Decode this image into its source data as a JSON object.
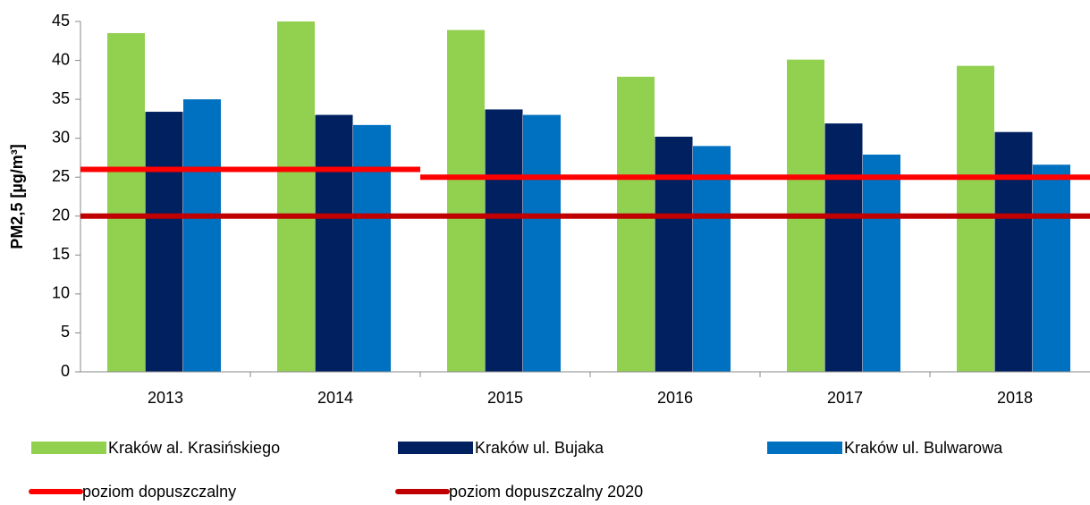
{
  "chart_data": {
    "type": "bar",
    "y_label": "PM2,5 [µg/m³]",
    "categories": [
      "2013",
      "2014",
      "2015",
      "2016",
      "2017",
      "2018"
    ],
    "series": [
      {
        "name": "Kraków al. Krasińskiego",
        "color": "#92d050",
        "values": [
          43.5,
          45,
          43.9,
          37.9,
          40.1,
          39.3
        ]
      },
      {
        "name": "Kraków ul. Bujaka",
        "color": "#002060",
        "values": [
          33.4,
          33,
          33.7,
          30.2,
          31.9,
          30.8
        ]
      },
      {
        "name": "Kraków ul. Bulwarowa",
        "color": "#0070c0",
        "values": [
          35,
          31.7,
          33,
          29,
          27.9,
          26.6
        ]
      }
    ],
    "lines": [
      {
        "name": "poziom dopuszczalny",
        "color": "#ff0000",
        "values": [
          26,
          26,
          25,
          25,
          25,
          25
        ]
      },
      {
        "name": "poziom dopuszczalny 2020",
        "color": "#c00000",
        "values": [
          20,
          20,
          20,
          20,
          20,
          20
        ]
      }
    ],
    "ylim": [
      0,
      45
    ],
    "yticks": [
      0,
      5,
      10,
      15,
      20,
      25,
      30,
      35,
      40,
      45
    ],
    "grid": false
  }
}
